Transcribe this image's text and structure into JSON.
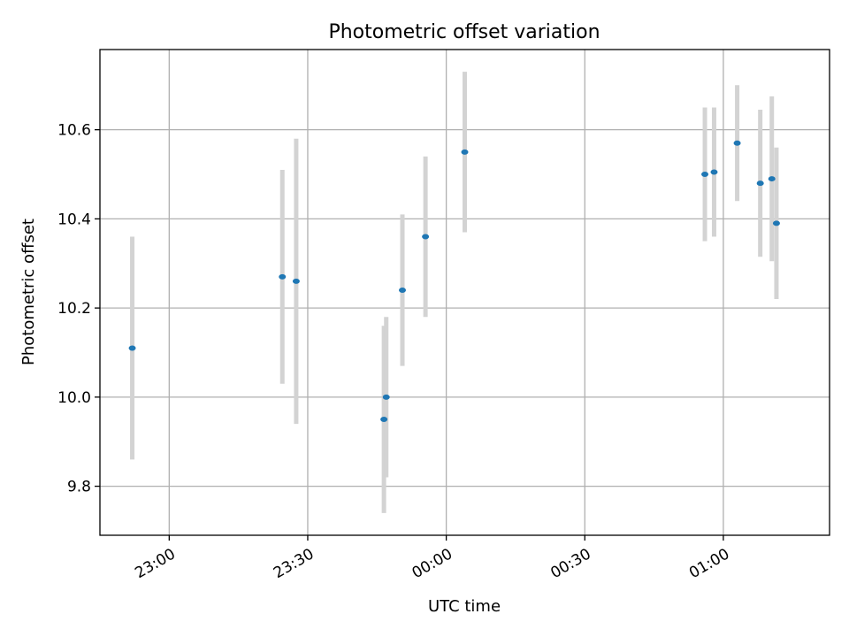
{
  "chart_data": {
    "type": "scatter",
    "title": "Photometric offset variation",
    "xlabel": "UTC time",
    "ylabel": "Photometric offset",
    "x_axis": "time",
    "x_range": [
      "22:45",
      "01:23"
    ],
    "ylim": [
      9.69,
      10.78
    ],
    "x_ticks": [
      "23:00",
      "23:30",
      "00:00",
      "00:30",
      "01:00"
    ],
    "y_ticks": [
      9.8,
      10.0,
      10.2,
      10.4,
      10.6
    ],
    "grid": true,
    "colors": {
      "marker": "#1f77b4",
      "errorbar": "#d3d3d3"
    },
    "points": [
      {
        "x": "22:52:00",
        "y": 10.11,
        "yerr": 0.25
      },
      {
        "x": "23:24:30",
        "y": 10.27,
        "yerr": 0.24
      },
      {
        "x": "23:27:30",
        "y": 10.26,
        "yerr": 0.32
      },
      {
        "x": "23:46:30",
        "y": 9.95,
        "yerr": 0.21
      },
      {
        "x": "23:47:00",
        "y": 10.0,
        "yerr": 0.18
      },
      {
        "x": "23:50:30",
        "y": 10.24,
        "yerr": 0.17
      },
      {
        "x": "23:55:30",
        "y": 10.36,
        "yerr": 0.18
      },
      {
        "x": "00:04:00",
        "y": 10.55,
        "yerr": 0.18
      },
      {
        "x": "00:56:00",
        "y": 10.5,
        "yerr": 0.15
      },
      {
        "x": "00:58:00",
        "y": 10.505,
        "yerr": 0.145
      },
      {
        "x": "01:03:00",
        "y": 10.57,
        "yerr": 0.13
      },
      {
        "x": "01:08:00",
        "y": 10.48,
        "yerr": 0.165
      },
      {
        "x": "01:10:30",
        "y": 10.49,
        "yerr": 0.185
      },
      {
        "x": "01:11:30",
        "y": 10.39,
        "yerr": 0.17
      }
    ]
  }
}
